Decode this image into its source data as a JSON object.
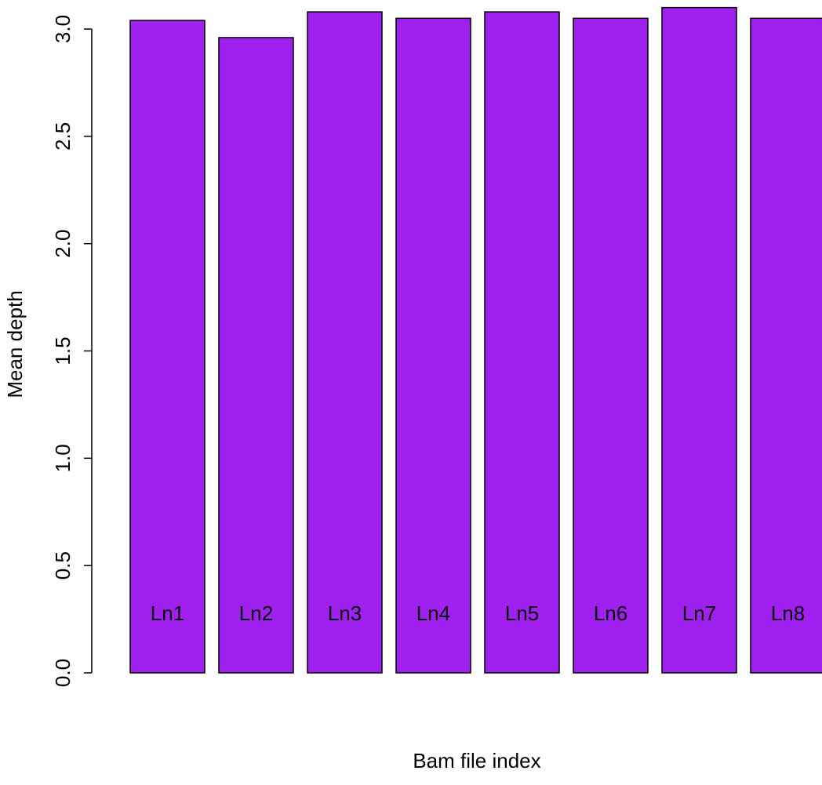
{
  "chart_data": {
    "type": "bar",
    "title": "",
    "xlabel": "Bam file index",
    "ylabel": "Mean depth",
    "categories": [
      "Ln1",
      "Ln2",
      "Ln3",
      "Ln4",
      "Ln5",
      "Ln6",
      "Ln7",
      "Ln8"
    ],
    "values": [
      3.04,
      2.96,
      3.08,
      3.05,
      3.08,
      3.05,
      3.1,
      3.05
    ],
    "ylim": [
      0,
      3.0
    ],
    "yticks": [
      "0.0",
      "0.5",
      "1.0",
      "1.5",
      "2.0",
      "2.5",
      "3.0"
    ],
    "grid": false,
    "legend": "none",
    "bar_color": "#A020F0",
    "bar_edge_color": "#000000"
  }
}
